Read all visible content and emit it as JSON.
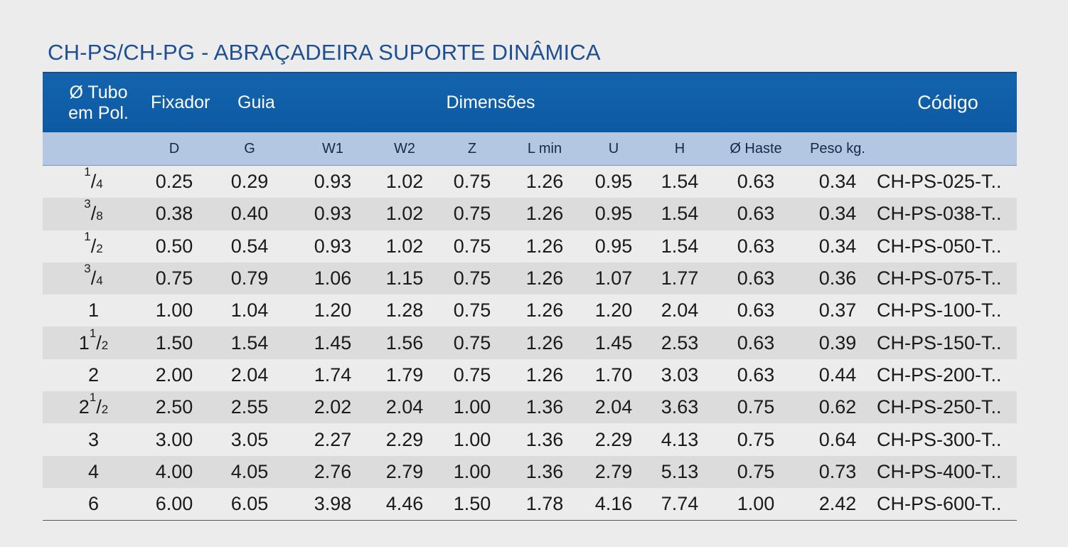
{
  "title": "CH-PS/CH-PG - ABRAÇADEIRA SUPORTE DINÂMICA",
  "header": {
    "tubo": "Ø Tubo\nem Pol.",
    "fixador": "Fixador",
    "guia": "Guia",
    "dimensoes": "Dimensões",
    "codigo": "Código"
  },
  "subheader": [
    "D",
    "G",
    "W1",
    "W2",
    "Z",
    "L min",
    "U",
    "H",
    "Ø Haste",
    "Peso kg."
  ],
  "rows": [
    {
      "tubo": {
        "whole": "",
        "num": "1",
        "den": "4"
      },
      "values": [
        "0.25",
        "0.29",
        "0.93",
        "1.02",
        "0.75",
        "1.26",
        "0.95",
        "1.54",
        "0.63",
        "0.34"
      ],
      "codigo": "CH-PS-025-T.."
    },
    {
      "tubo": {
        "whole": "",
        "num": "3",
        "den": "8"
      },
      "values": [
        "0.38",
        "0.40",
        "0.93",
        "1.02",
        "0.75",
        "1.26",
        "0.95",
        "1.54",
        "0.63",
        "0.34"
      ],
      "codigo": "CH-PS-038-T.."
    },
    {
      "tubo": {
        "whole": "",
        "num": "1",
        "den": "2"
      },
      "values": [
        "0.50",
        "0.54",
        "0.93",
        "1.02",
        "0.75",
        "1.26",
        "0.95",
        "1.54",
        "0.63",
        "0.34"
      ],
      "codigo": "CH-PS-050-T.."
    },
    {
      "tubo": {
        "whole": "",
        "num": "3",
        "den": "4"
      },
      "values": [
        "0.75",
        "0.79",
        "1.06",
        "1.15",
        "0.75",
        "1.26",
        "1.07",
        "1.77",
        "0.63",
        "0.36"
      ],
      "codigo": "CH-PS-075-T.."
    },
    {
      "tubo": {
        "whole": "1",
        "num": "",
        "den": ""
      },
      "values": [
        "1.00",
        "1.04",
        "1.20",
        "1.28",
        "0.75",
        "1.26",
        "1.20",
        "2.04",
        "0.63",
        "0.37"
      ],
      "codigo": "CH-PS-100-T.."
    },
    {
      "tubo": {
        "whole": "1",
        "num": "1",
        "den": "2"
      },
      "values": [
        "1.50",
        "1.54",
        "1.45",
        "1.56",
        "0.75",
        "1.26",
        "1.45",
        "2.53",
        "0.63",
        "0.39"
      ],
      "codigo": "CH-PS-150-T.."
    },
    {
      "tubo": {
        "whole": "2",
        "num": "",
        "den": ""
      },
      "values": [
        "2.00",
        "2.04",
        "1.74",
        "1.79",
        "0.75",
        "1.26",
        "1.70",
        "3.03",
        "0.63",
        "0.44"
      ],
      "codigo": "CH-PS-200-T.."
    },
    {
      "tubo": {
        "whole": "2",
        "num": "1",
        "den": "2"
      },
      "values": [
        "2.50",
        "2.55",
        "2.02",
        "2.04",
        "1.00",
        "1.36",
        "2.04",
        "3.63",
        "0.75",
        "0.62"
      ],
      "codigo": "CH-PS-250-T.."
    },
    {
      "tubo": {
        "whole": "3",
        "num": "",
        "den": ""
      },
      "values": [
        "3.00",
        "3.05",
        "2.27",
        "2.29",
        "1.00",
        "1.36",
        "2.29",
        "4.13",
        "0.75",
        "0.64"
      ],
      "codigo": "CH-PS-300-T.."
    },
    {
      "tubo": {
        "whole": "4",
        "num": "",
        "den": ""
      },
      "values": [
        "4.00",
        "4.05",
        "2.76",
        "2.79",
        "1.00",
        "1.36",
        "2.79",
        "5.13",
        "0.75",
        "0.73"
      ],
      "codigo": "CH-PS-400-T.."
    },
    {
      "tubo": {
        "whole": "6",
        "num": "",
        "den": ""
      },
      "values": [
        "6.00",
        "6.05",
        "3.98",
        "4.46",
        "1.50",
        "1.78",
        "4.16",
        "7.74",
        "1.00",
        "2.42"
      ],
      "codigo": "CH-PS-600-T.."
    }
  ],
  "colors": {
    "title": "#1f4f93",
    "header_bg": "#0f5ea8",
    "subheader_bg": "#b3c7e2",
    "row_alt_bg": "#dcdcdc",
    "page_bg": "#ececec"
  }
}
